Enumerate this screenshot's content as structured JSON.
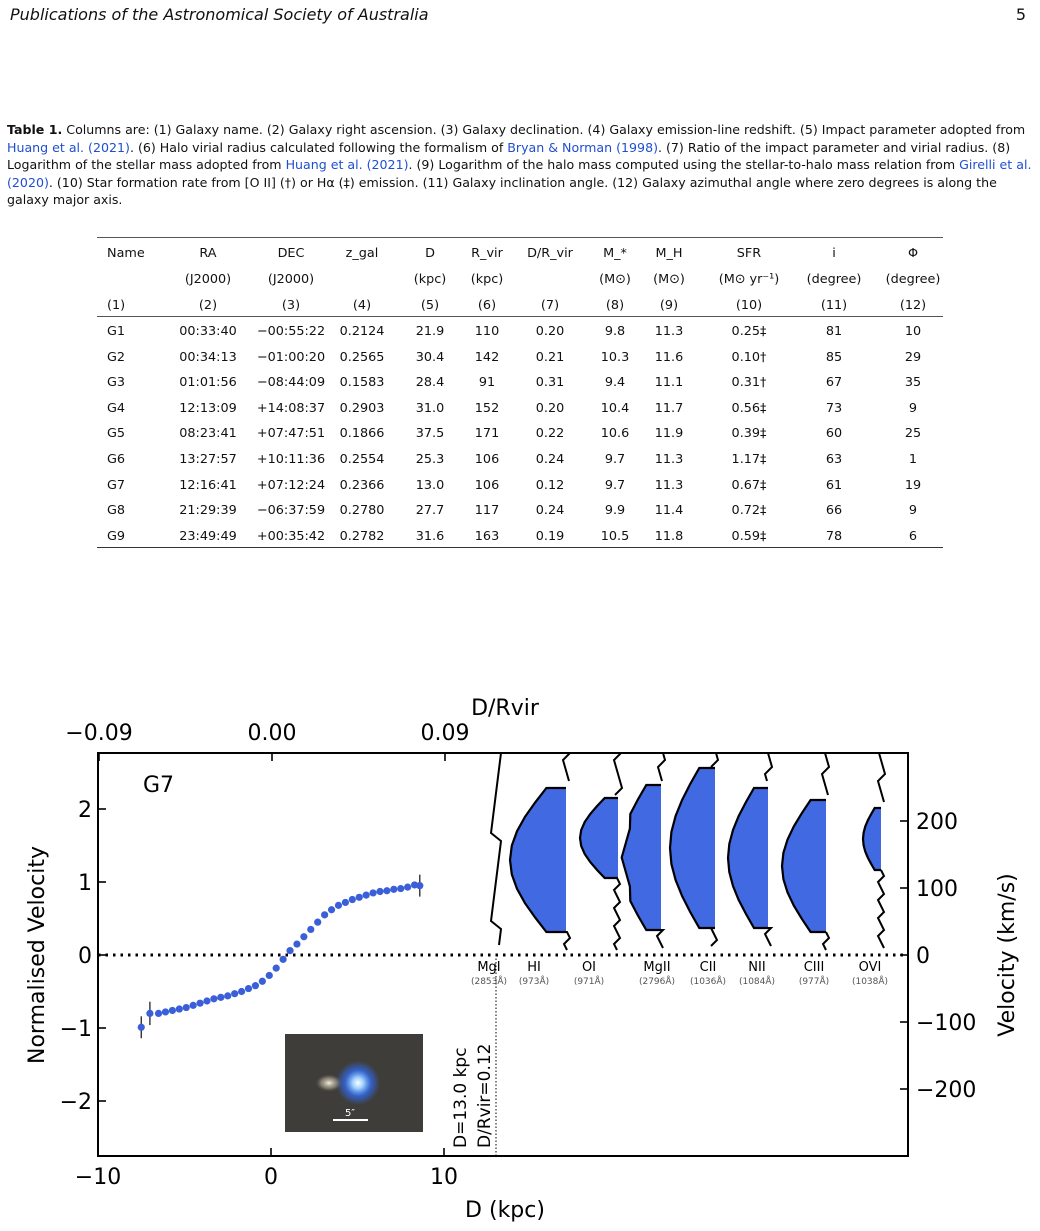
{
  "header": {
    "running_head": "Publications of the Astronomical Society of Australia",
    "page_number": "5"
  },
  "caption": {
    "label": "Table 1.",
    "text_1": " Columns are: (1) Galaxy name. (2) Galaxy right ascension. (3) Galaxy declination. (4) Galaxy emission-line redshift. (5) Impact parameter adopted from ",
    "ref_1": "Huang et al. (2021)",
    "text_2": ". (6) Halo virial radius calculated following the formalism of ",
    "ref_2": "Bryan & Norman (1998)",
    "text_3": ". (7) Ratio of the impact parameter and virial radius. (8) Logarithm of the stellar mass adopted from ",
    "ref_3": "Huang et al. (2021)",
    "text_4": ". (9) Logarithm of the halo mass computed using the stellar-to-halo mass relation from ",
    "ref_4": "Girelli et al. (2020)",
    "text_5": ". (10) Star formation rate from [O II] (†) or Hα (‡) emission. (11) Galaxy inclination angle. (12) Galaxy azimuthal angle where zero degrees is along the galaxy major axis."
  },
  "table": {
    "header_row_1": [
      "Name",
      "RA",
      "DEC",
      "z_gal",
      "D",
      "R_vir",
      "D/R_vir",
      "M_*",
      "M_H",
      "SFR",
      "i",
      "Φ"
    ],
    "header_row_2": [
      "",
      "(J2000)",
      "(J2000)",
      "",
      "(kpc)",
      "(kpc)",
      "",
      "(M⊙)",
      "(M⊙)",
      "(M⊙ yr⁻¹)",
      "(degree)",
      "(degree)"
    ],
    "header_row_3": [
      "(1)",
      "(2)",
      "(3)",
      "(4)",
      "(5)",
      "(6)",
      "(7)",
      "(8)",
      "(9)",
      "(10)",
      "(11)",
      "(12)"
    ],
    "rows": [
      [
        "G1",
        "00:33:40",
        "−00:55:22",
        "0.2124",
        "21.9",
        "110",
        "0.20",
        "9.8",
        "11.3",
        "0.25‡",
        "81",
        "10"
      ],
      [
        "G2",
        "00:34:13",
        "−01:00:20",
        "0.2565",
        "30.4",
        "142",
        "0.21",
        "10.3",
        "11.6",
        "0.10†",
        "85",
        "29"
      ],
      [
        "G3",
        "01:01:56",
        "−08:44:09",
        "0.1583",
        "28.4",
        "91",
        "0.31",
        "9.4",
        "11.1",
        "0.31†",
        "67",
        "35"
      ],
      [
        "G4",
        "12:13:09",
        "+14:08:37",
        "0.2903",
        "31.0",
        "152",
        "0.20",
        "10.4",
        "11.7",
        "0.56‡",
        "73",
        "9"
      ],
      [
        "G5",
        "08:23:41",
        "+07:47:51",
        "0.1866",
        "37.5",
        "171",
        "0.22",
        "10.6",
        "11.9",
        "0.39‡",
        "60",
        "25"
      ],
      [
        "G6",
        "13:27:57",
        "+10:11:36",
        "0.2554",
        "25.3",
        "106",
        "0.24",
        "9.7",
        "11.3",
        "1.17‡",
        "63",
        "1"
      ],
      [
        "G7",
        "12:16:41",
        "+07:12:24",
        "0.2366",
        "13.0",
        "106",
        "0.12",
        "9.7",
        "11.3",
        "0.67‡",
        "61",
        "19"
      ],
      [
        "G8",
        "21:29:39",
        "−06:37:59",
        "0.2780",
        "27.7",
        "117",
        "0.24",
        "9.9",
        "11.4",
        "0.72‡",
        "66",
        "9"
      ],
      [
        "G9",
        "23:49:49",
        "+00:35:42",
        "0.2782",
        "31.6",
        "163",
        "0.19",
        "10.5",
        "11.8",
        "0.59‡",
        "78",
        "6"
      ]
    ]
  },
  "chart_data": {
    "type": "scatter",
    "galaxy_label": "G7",
    "xlabel": "D (kpc)",
    "ylabel": "Normalised Velocity",
    "top_xlabel": "D/Rvir",
    "right_ylabel": "Velocity (km/s)",
    "xlim": [
      -10,
      36
    ],
    "ylim": [
      -2.75,
      2.75
    ],
    "x_ticks": [
      "−10",
      "0",
      "10"
    ],
    "y_ticks": [
      "−2",
      "−1",
      "0",
      "1",
      "2"
    ],
    "top_ticks": [
      "−0.09",
      "0.00",
      "0.09"
    ],
    "right_ticks": [
      "−200",
      "−100",
      "0",
      "100",
      "200"
    ],
    "rotation_curve": {
      "x": [
        -7.5,
        -7.0,
        -6.5,
        -6.1,
        -5.7,
        -5.3,
        -4.9,
        -4.5,
        -4.1,
        -3.7,
        -3.3,
        -2.9,
        -2.5,
        -2.1,
        -1.7,
        -1.3,
        -0.9,
        -0.5,
        -0.1,
        0.3,
        0.7,
        1.1,
        1.5,
        1.9,
        2.3,
        2.7,
        3.1,
        3.5,
        3.9,
        4.3,
        4.7,
        5.1,
        5.5,
        5.9,
        6.3,
        6.7,
        7.1,
        7.5,
        7.9,
        8.3,
        8.6
      ],
      "y": [
        -0.99,
        -0.8,
        -0.8,
        -0.78,
        -0.76,
        -0.74,
        -0.72,
        -0.69,
        -0.66,
        -0.63,
        -0.6,
        -0.58,
        -0.56,
        -0.53,
        -0.5,
        -0.46,
        -0.42,
        -0.36,
        -0.28,
        -0.18,
        -0.06,
        0.06,
        0.15,
        0.25,
        0.35,
        0.45,
        0.55,
        0.62,
        0.68,
        0.72,
        0.76,
        0.79,
        0.82,
        0.85,
        0.87,
        0.88,
        0.9,
        0.91,
        0.93,
        0.96,
        0.95
      ]
    },
    "impact_parameter_label": "D=13.0 kpc",
    "ratio_label": "D/Rvir=0.12",
    "image_scale_label": "5″",
    "ion_panels": [
      {
        "ion": "MgI",
        "wavelength": "(2853Å)"
      },
      {
        "ion": "HI",
        "wavelength": "(973Å)"
      },
      {
        "ion": "OI",
        "wavelength": "(971Å)"
      },
      {
        "ion": "MgII",
        "wavelength": "(2796Å)"
      },
      {
        "ion": "CII",
        "wavelength": "(1036Å)"
      },
      {
        "ion": "NII",
        "wavelength": "(1084Å)"
      },
      {
        "ion": "CIII",
        "wavelength": "(977Å)"
      },
      {
        "ion": "OVI",
        "wavelength": "(1038Å)"
      }
    ],
    "absorption_color": "#4169e1",
    "point_color": "#3a5fd9"
  }
}
